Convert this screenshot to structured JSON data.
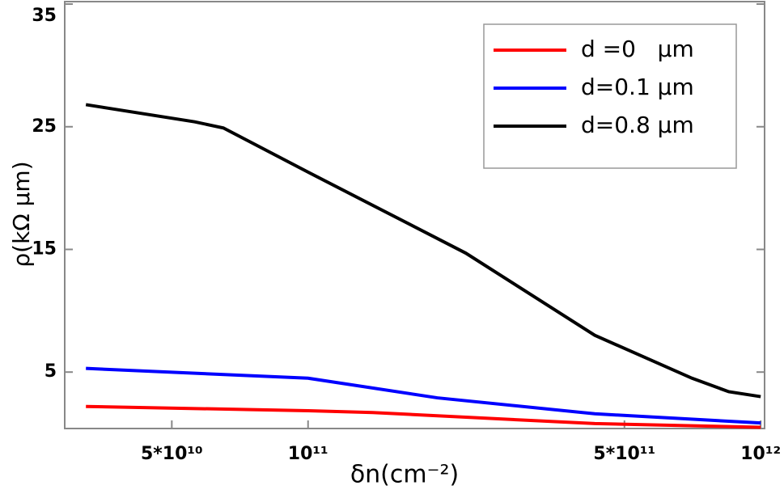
{
  "chart_data": {
    "type": "line",
    "xlabel": "δn(cm⁻²)",
    "ylabel": "ρ(kΩ μm)",
    "xscale": "log",
    "xlim": [
      29000000000.0,
      1020000000000.0
    ],
    "ylim": [
      0.4,
      35.2
    ],
    "xticks": [
      {
        "value": 50000000000,
        "label": "5*10¹⁰"
      },
      {
        "value": 100000000000,
        "label": "10¹¹"
      },
      {
        "value": 500000000000,
        "label": "5*10¹¹"
      },
      {
        "value": 1000000000000,
        "label": "10¹²"
      }
    ],
    "yticks": [
      5,
      15,
      25,
      35
    ],
    "legend": "upper right",
    "series": [
      {
        "name": "d =0   μm",
        "color": "#ff0000",
        "x": [
          32300000000.0,
          100000000000.0,
          139000000000.0,
          430000000000.0,
          1000000000000.0
        ],
        "values": [
          2.2,
          1.85,
          1.7,
          0.8,
          0.5
        ]
      },
      {
        "name": "d=0.1 μm",
        "color": "#0000ff",
        "x": [
          32300000000.0,
          100000000000.0,
          193000000000.0,
          430000000000.0,
          1000000000000.0
        ],
        "values": [
          5.3,
          4.5,
          2.9,
          1.6,
          0.85
        ]
      },
      {
        "name": "d=0.8 μm",
        "color": "#000000",
        "x": [
          32300000000.0,
          56200000000.0,
          65000000000.0,
          100000000000.0,
          223000000000.0,
          430000000000.0,
          705000000000.0,
          850000000000.0,
          1000000000000.0
        ],
        "values": [
          26.8,
          25.4,
          24.9,
          21.3,
          14.7,
          8.0,
          4.5,
          3.4,
          3.0
        ]
      }
    ]
  }
}
